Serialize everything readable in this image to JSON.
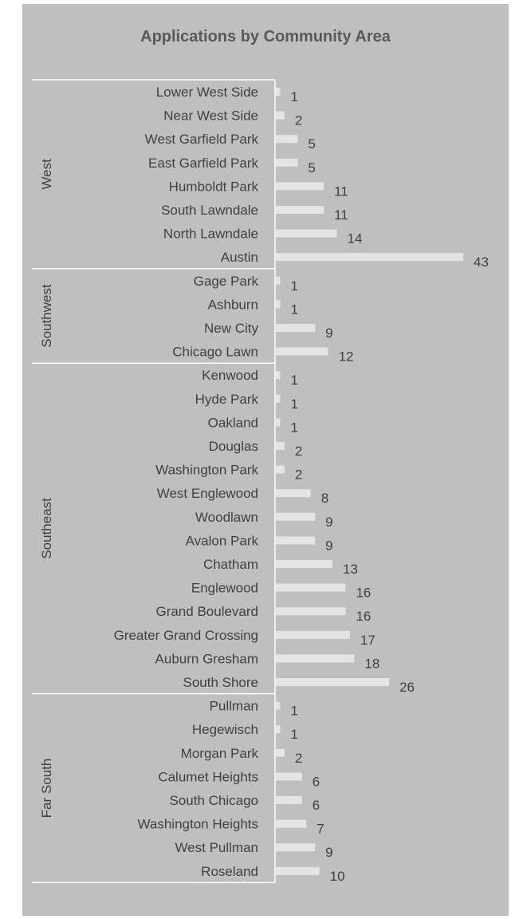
{
  "chart_data": {
    "type": "bar",
    "orientation": "horizontal",
    "title": "Applications by Community Area",
    "xlabel": "",
    "ylabel": "",
    "xlim": [
      0,
      43
    ],
    "grid": false,
    "legend": "none",
    "colors": {
      "background": "#bfbfbf",
      "bar": "#e4e4e4",
      "text": "#404040",
      "title": "#595959",
      "divider": "#ffffff"
    },
    "groups": [
      {
        "name": "West",
        "categories": [
          "Lower West Side",
          "Near West Side",
          "West Garfield Park",
          "East Garfield Park",
          "Humboldt Park",
          "South Lawndale",
          "North Lawndale",
          "Austin"
        ],
        "values": [
          1,
          2,
          5,
          5,
          11,
          11,
          14,
          43
        ]
      },
      {
        "name": "Southwest",
        "categories": [
          "Gage Park",
          "Ashburn",
          "New City",
          "Chicago Lawn"
        ],
        "values": [
          1,
          1,
          9,
          12
        ]
      },
      {
        "name": "Southeast",
        "categories": [
          "Kenwood",
          "Hyde Park",
          "Oakland",
          "Douglas",
          "Washington Park",
          "West Englewood",
          "Woodlawn",
          "Avalon Park",
          "Chatham",
          "Englewood",
          "Grand Boulevard",
          "Greater Grand Crossing",
          "Auburn Gresham",
          "South Shore"
        ],
        "values": [
          1,
          1,
          1,
          2,
          2,
          8,
          9,
          9,
          13,
          16,
          16,
          17,
          18,
          26
        ]
      },
      {
        "name": "Far South",
        "categories": [
          "Pullman",
          "Hegewisch",
          "Morgan Park",
          "Calumet Heights",
          "South Chicago",
          "Washington Heights",
          "West Pullman",
          "Roseland"
        ],
        "values": [
          1,
          1,
          2,
          6,
          6,
          7,
          9,
          10
        ]
      }
    ]
  }
}
